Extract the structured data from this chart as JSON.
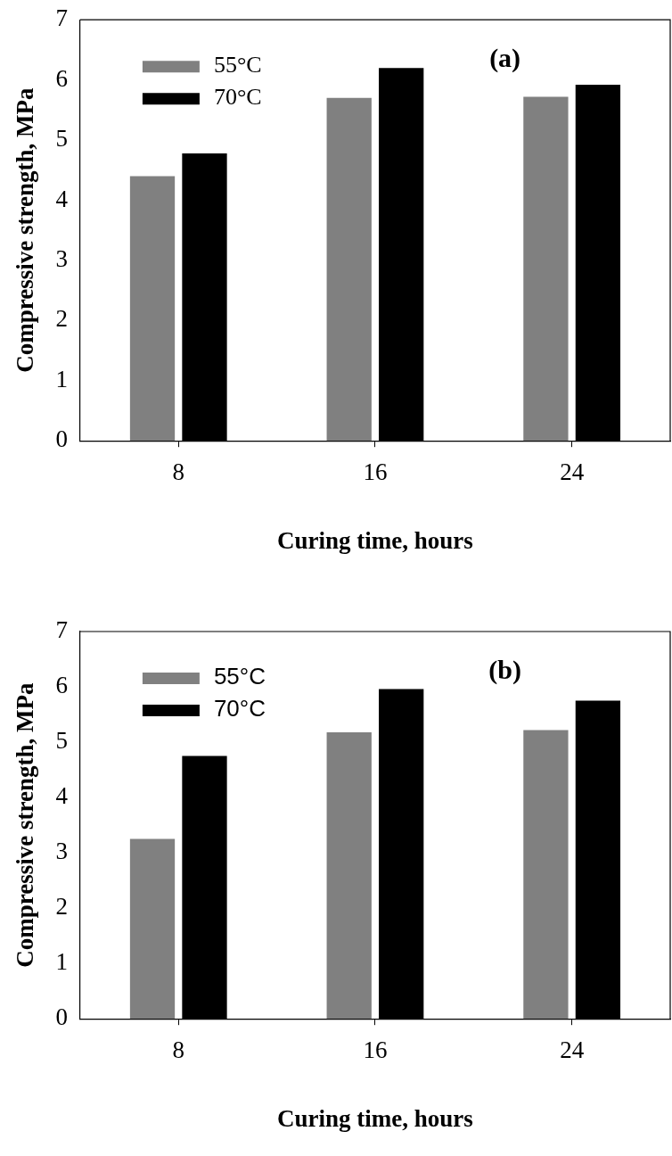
{
  "chart_data": [
    {
      "type": "bar",
      "categories": [
        "8",
        "16",
        "24"
      ],
      "xlabel": "Curing time, hours",
      "ylabel": "Compressive strength, MPa",
      "annotations": [
        "(a)"
      ],
      "ylim": [
        0,
        7
      ],
      "yticks": [
        0,
        1,
        2,
        3,
        4,
        5,
        6,
        7
      ],
      "grid": false,
      "legend": "top left",
      "series": [
        {
          "name": "55°C",
          "color": "#808080",
          "values": [
            4.4,
            5.7,
            5.72
          ]
        },
        {
          "name": "70°C",
          "color": "#000000",
          "values": [
            4.78,
            6.2,
            5.92
          ]
        }
      ]
    },
    {
      "type": "bar",
      "categories": [
        "8",
        "16",
        "24"
      ],
      "xlabel": "Curing time, hours",
      "ylabel": "Compressive strength, MPa",
      "annotations": [
        "(b)"
      ],
      "ylim": [
        0,
        7
      ],
      "yticks": [
        0,
        1,
        2,
        3,
        4,
        5,
        6,
        7
      ],
      "grid": false,
      "legend": "top left",
      "series": [
        {
          "name": "55°C",
          "color": "#808080",
          "values": [
            3.25,
            5.18,
            5.22
          ]
        },
        {
          "name": "70°C",
          "color": "#000000",
          "values": [
            4.75,
            5.96,
            5.75
          ]
        }
      ]
    }
  ]
}
